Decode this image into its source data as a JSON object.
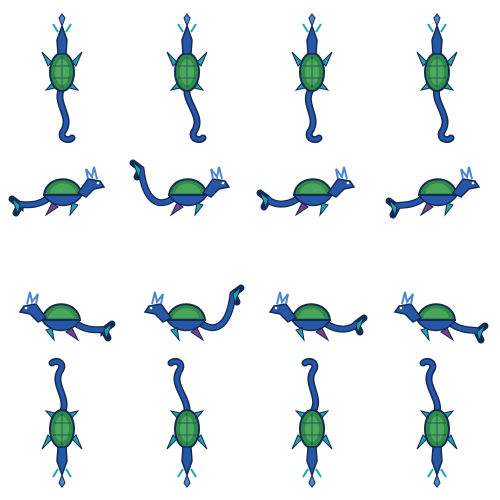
{
  "sprite_sheet": {
    "subject": "sea-serpent-turtle",
    "columns": 4,
    "rows": 4,
    "background": "#ffffff",
    "palette": {
      "body": "#2557a6",
      "body_light": "#4f86d0",
      "fin": "#1fa3a8",
      "shell": "#2f8a48",
      "shell_light": "#58b86a",
      "outline": "#122a55",
      "accent": "#7b3f8a"
    },
    "rows_info": [
      {
        "direction": "up",
        "frames": 4
      },
      {
        "direction": "right",
        "frames": 4
      },
      {
        "direction": "left",
        "frames": 4
      },
      {
        "direction": "down",
        "frames": 4
      }
    ]
  }
}
